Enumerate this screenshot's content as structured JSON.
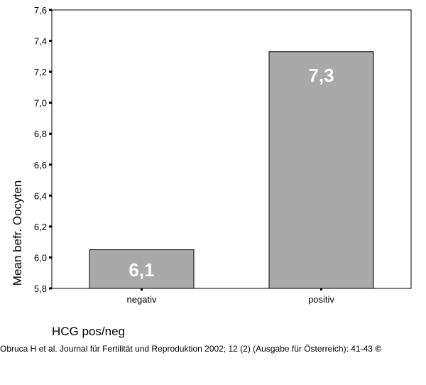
{
  "chart_data": {
    "type": "bar",
    "categories": [
      "negativ",
      "positiv"
    ],
    "values": [
      6.05,
      7.33
    ],
    "data_labels": [
      "6,1",
      "7,3"
    ],
    "xlabel": "HCG pos/neg",
    "ylabel": "Mean befr. Oocyten",
    "ylim": [
      5.8,
      7.6
    ],
    "yticks": [
      5.8,
      6.0,
      6.2,
      6.4,
      6.6,
      6.8,
      7.0,
      7.2,
      7.4,
      7.6
    ],
    "ytick_labels": [
      "5,8",
      "6,0",
      "6,2",
      "6,4",
      "6,6",
      "6,8",
      "7,0",
      "7,2",
      "7,4",
      "7,6"
    ],
    "bar_color": "#a9a9a9",
    "grid": false
  },
  "citation": {
    "text": "Obruca H et al. Journal für Fertilität und Reproduktion 2002; 12 (2) (Ausgabe für Österreich): 41-43",
    "symbol": "©"
  }
}
